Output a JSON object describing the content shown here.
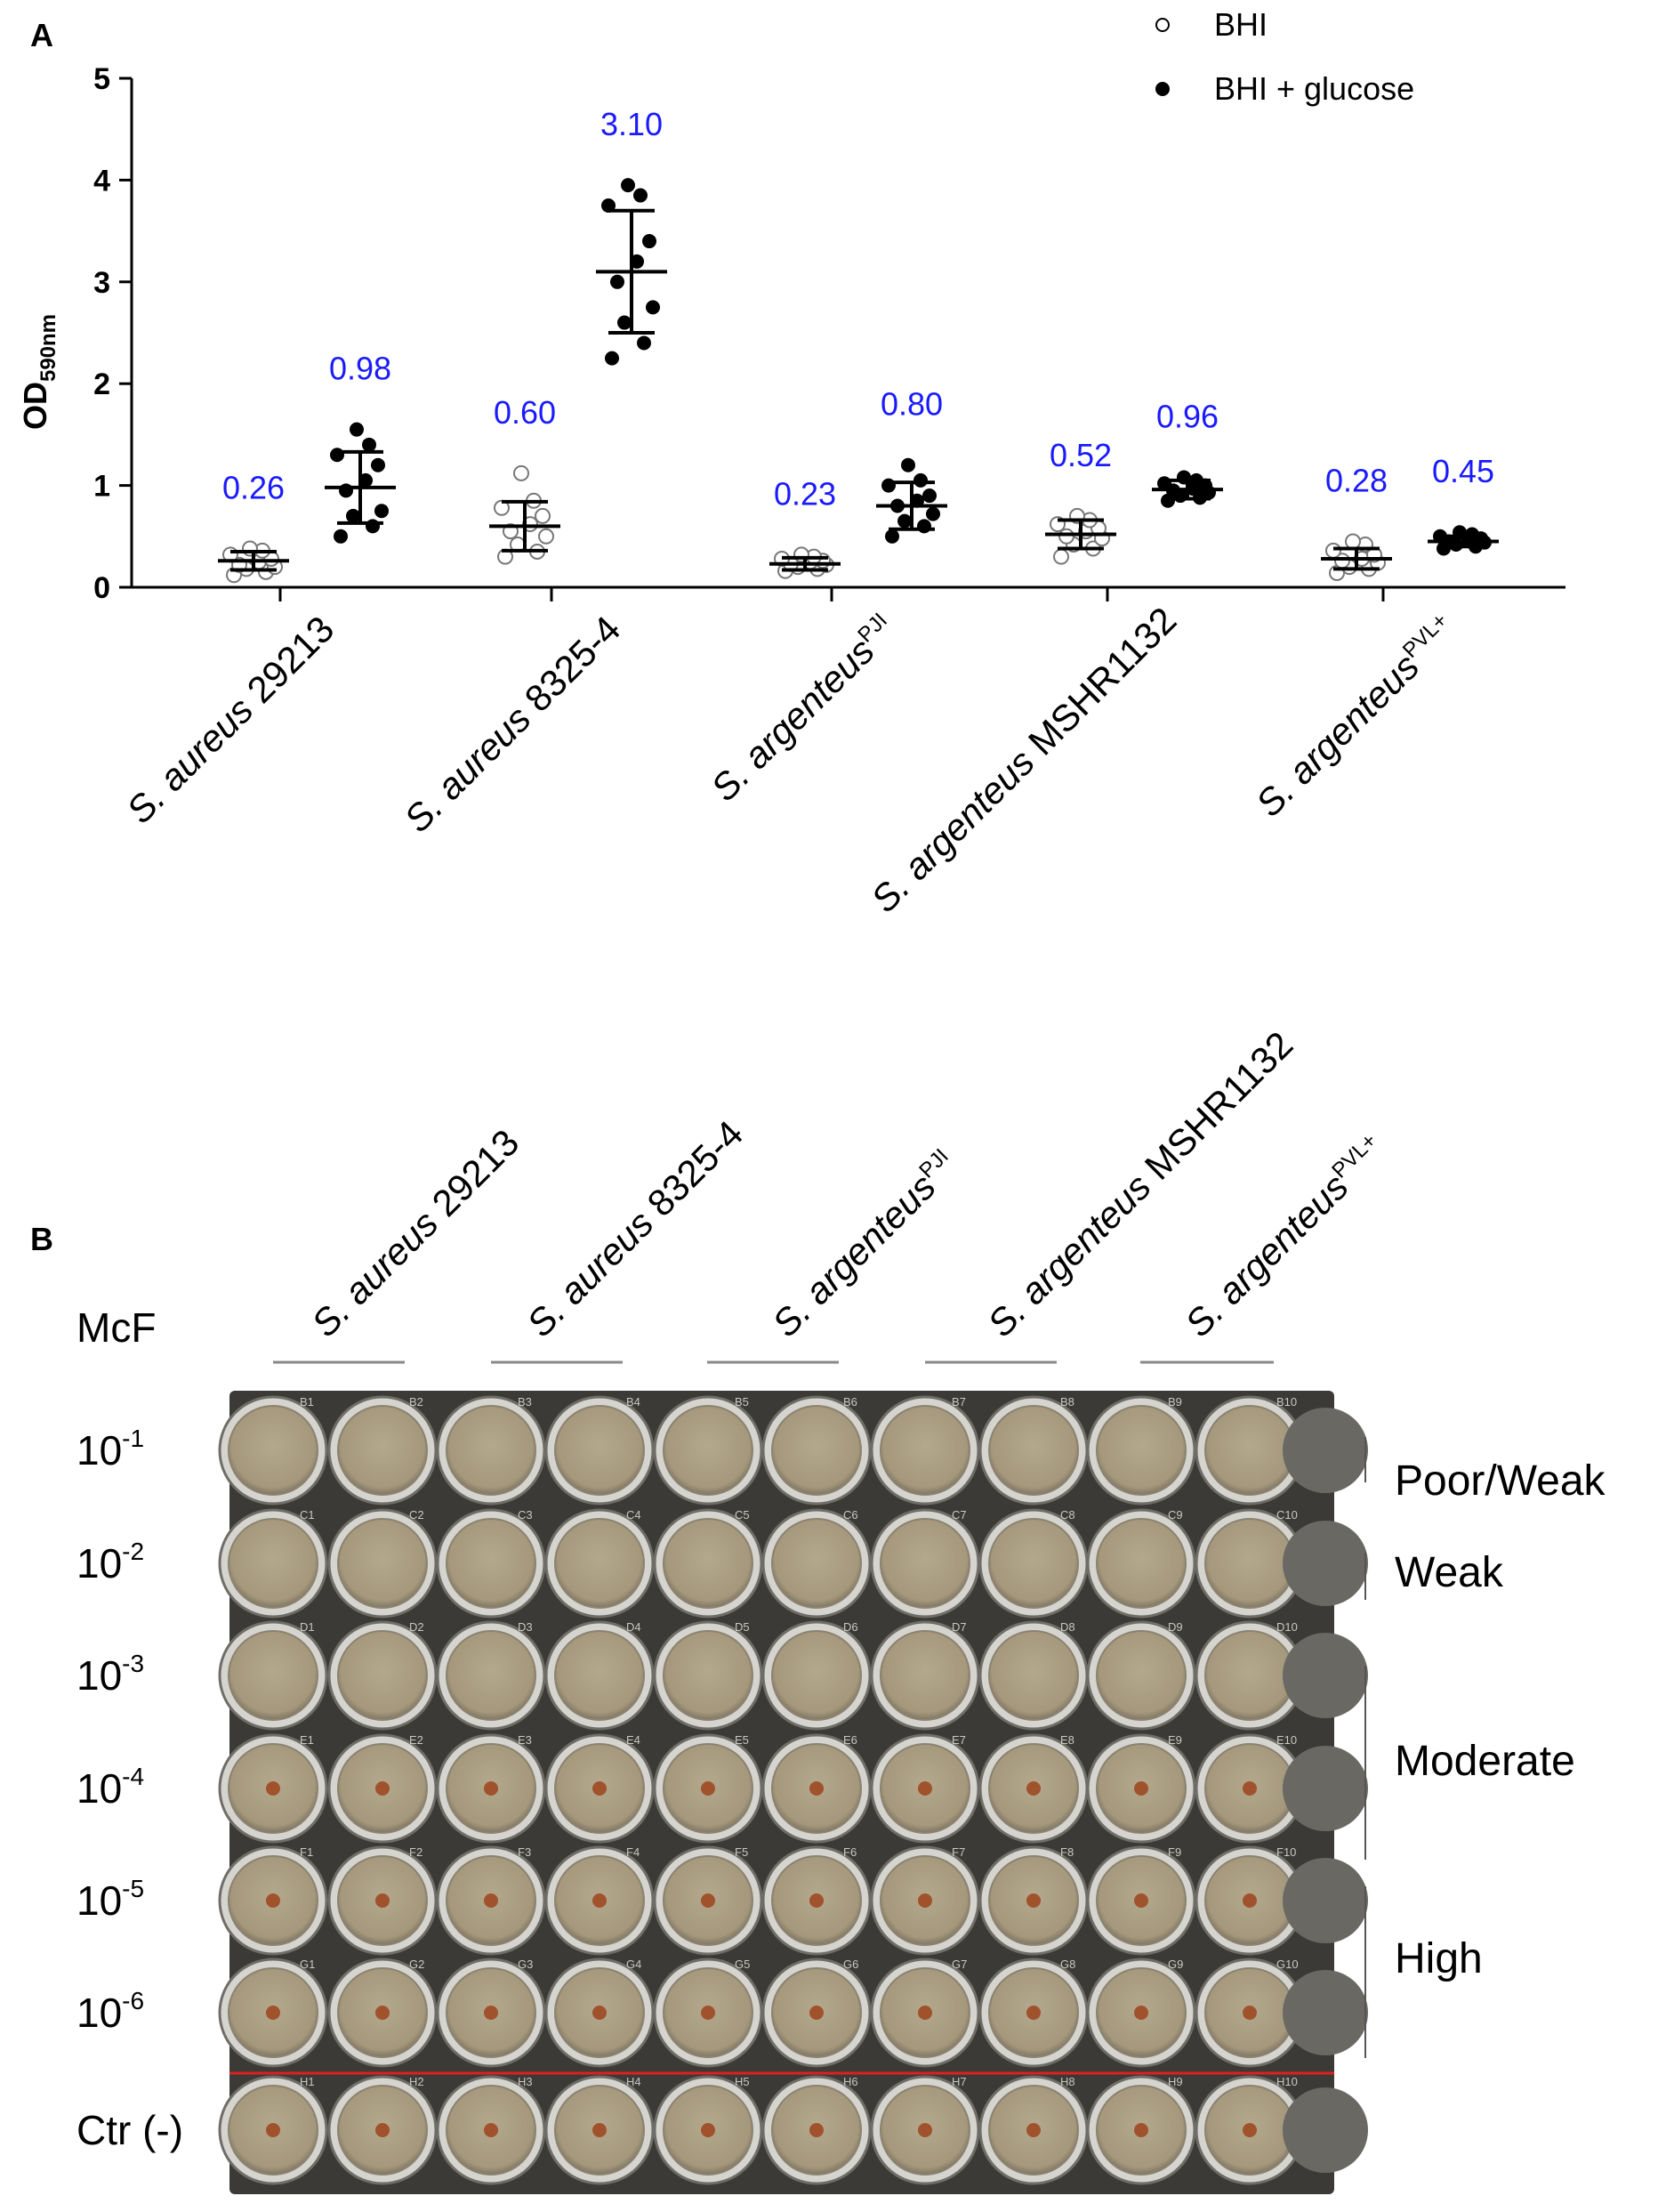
{
  "panel_a": {
    "label": "A",
    "ylabel_main": "OD",
    "ylabel_sub": "590nm",
    "legend": [
      {
        "name": "BHI",
        "marker": "open-circle"
      },
      {
        "name": "BHI + glucose",
        "marker": "filled-circle"
      }
    ],
    "categories": [
      {
        "species": "S. aureus",
        "strain": "29213",
        "sup": ""
      },
      {
        "species": "S. aureus",
        "strain": "8325-4",
        "sup": ""
      },
      {
        "species": "S. argenteus",
        "strain": "",
        "sup": "PJI"
      },
      {
        "species": "S. argenteus",
        "strain": "MSHR1132",
        "sup": ""
      },
      {
        "species": "S. argenteus",
        "strain": "",
        "sup": "PVL+"
      }
    ]
  },
  "chart_data": {
    "type": "scatter",
    "title": "",
    "xlabel": "",
    "ylabel": "OD590nm",
    "ylim": [
      0,
      5
    ],
    "yticks": [
      0,
      1,
      2,
      3,
      4,
      5
    ],
    "annotation_color": "#1a1aff",
    "series": [
      {
        "name": "BHI",
        "marker": "open",
        "means": [
          0.26,
          0.6,
          0.23,
          0.52,
          0.28
        ],
        "mean_labels": [
          "0.26",
          "0.60",
          "0.23",
          "0.52",
          "0.28"
        ],
        "sd": [
          0.09,
          0.24,
          0.06,
          0.14,
          0.1
        ],
        "points": [
          [
            0.12,
            0.15,
            0.18,
            0.2,
            0.22,
            0.25,
            0.28,
            0.32,
            0.36,
            0.38
          ],
          [
            0.3,
            0.35,
            0.42,
            0.5,
            0.55,
            0.62,
            0.7,
            0.78,
            0.85,
            1.12
          ],
          [
            0.16,
            0.18,
            0.2,
            0.22,
            0.23,
            0.25,
            0.26,
            0.28,
            0.3,
            0.32
          ],
          [
            0.3,
            0.38,
            0.42,
            0.48,
            0.5,
            0.55,
            0.58,
            0.62,
            0.66,
            0.7
          ],
          [
            0.14,
            0.18,
            0.2,
            0.24,
            0.26,
            0.28,
            0.32,
            0.36,
            0.42,
            0.45
          ]
        ]
      },
      {
        "name": "BHI + glucose",
        "marker": "filled",
        "means": [
          0.98,
          3.1,
          0.8,
          0.96,
          0.45
        ],
        "mean_labels": [
          "0.98",
          "3.10",
          "0.80",
          "0.96",
          "0.45"
        ],
        "sd": [
          0.35,
          0.6,
          0.23,
          0.09,
          0.05
        ],
        "points": [
          [
            0.5,
            0.6,
            0.7,
            0.75,
            0.95,
            1.05,
            1.2,
            1.3,
            1.4,
            1.55
          ],
          [
            2.25,
            2.4,
            2.6,
            2.75,
            3.0,
            3.2,
            3.4,
            3.75,
            3.85,
            3.95
          ],
          [
            0.5,
            0.6,
            0.65,
            0.72,
            0.8,
            0.85,
            0.9,
            1.0,
            1.05,
            1.2
          ],
          [
            0.85,
            0.88,
            0.9,
            0.93,
            0.95,
            0.97,
            1.0,
            1.02,
            1.05,
            1.08
          ],
          [
            0.38,
            0.4,
            0.42,
            0.44,
            0.45,
            0.46,
            0.48,
            0.5,
            0.52,
            0.54
          ]
        ]
      }
    ]
  },
  "panel_b": {
    "label": "B",
    "column_header": "McF",
    "strains": [
      {
        "species": "S. aureus",
        "strain": "29213",
        "sup": ""
      },
      {
        "species": "S. aureus",
        "strain": "8325-4",
        "sup": ""
      },
      {
        "species": "S. argenteus",
        "strain": "",
        "sup": "PJI"
      },
      {
        "species": "S. argenteus",
        "strain": "MSHR1132",
        "sup": ""
      },
      {
        "species": "S. argenteus",
        "strain": "",
        "sup": "PVL+"
      }
    ],
    "rows": [
      {
        "base": "10",
        "exp": "-1"
      },
      {
        "base": "10",
        "exp": "-2"
      },
      {
        "base": "10",
        "exp": "-3"
      },
      {
        "base": "10",
        "exp": "-4"
      },
      {
        "base": "10",
        "exp": "-5"
      },
      {
        "base": "10",
        "exp": "-6"
      },
      {
        "base": "Ctr (-)",
        "exp": ""
      }
    ],
    "well_dot_rows": [
      3,
      4,
      5,
      6
    ],
    "categories": [
      {
        "label": "Poor/Weak",
        "rows": [
          0,
          0
        ]
      },
      {
        "label": "Weak",
        "rows": [
          1,
          1
        ]
      },
      {
        "label": "Moderate",
        "rows": [
          2,
          3
        ]
      },
      {
        "label": "High",
        "rows": [
          4,
          5
        ]
      }
    ],
    "well_codes": [
      [
        "B1",
        "B2",
        "B3",
        "B4",
        "B5",
        "B6",
        "B7",
        "B8",
        "B9",
        "B10"
      ],
      [
        "C1",
        "C2",
        "C3",
        "C4",
        "C5",
        "C6",
        "C7",
        "C8",
        "C9",
        "C10"
      ],
      [
        "D1",
        "D2",
        "D3",
        "D4",
        "D5",
        "D6",
        "D7",
        "D8",
        "D9",
        "D10"
      ],
      [
        "E1",
        "E2",
        "E3",
        "E4",
        "E5",
        "E6",
        "E7",
        "E8",
        "E9",
        "E10"
      ],
      [
        "F1",
        "F2",
        "F3",
        "F4",
        "F5",
        "F6",
        "F7",
        "F8",
        "F9",
        "F10"
      ],
      [
        "G1",
        "G2",
        "G3",
        "G4",
        "G5",
        "G6",
        "G7",
        "G8",
        "G9",
        "G10"
      ],
      [
        "H1",
        "H2",
        "H3",
        "H4",
        "H5",
        "H6",
        "H7",
        "H8",
        "H9",
        "H10"
      ]
    ],
    "colors": {
      "plate": "#3b3a36",
      "well_fill": "#a89c80",
      "well_dot": "#a0522d",
      "separator": "#e02020"
    }
  }
}
